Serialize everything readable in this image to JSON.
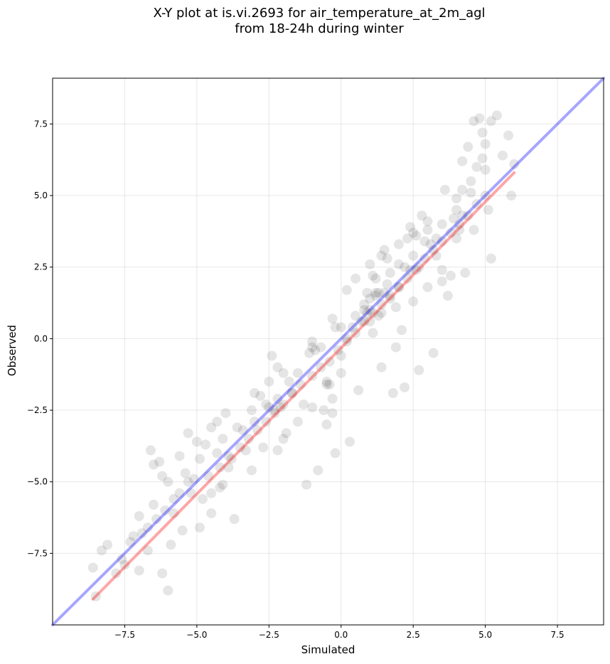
{
  "chart_data": {
    "type": "scatter",
    "title": [
      "X-Y plot at is.vi.2693 for air_temperature_at_2m_agl",
      "from 18-24h during winter"
    ],
    "xlabel": "Simulated",
    "ylabel": "Observed",
    "xlim": [
      -10.0,
      9.1
    ],
    "ylim": [
      -10.0,
      9.1
    ],
    "xticks": [
      -7.5,
      -5.0,
      -2.5,
      0.0,
      2.5,
      5.0,
      7.5
    ],
    "yticks": [
      -7.5,
      -5.0,
      -2.5,
      0.0,
      2.5,
      5.0,
      7.5
    ],
    "xtick_labels": [
      "−7.5",
      "−5.0",
      "−2.5",
      "0.0",
      "2.5",
      "5.0",
      "7.5"
    ],
    "ytick_labels": [
      "−7.5",
      "−5.0",
      "−2.5",
      "0.0",
      "2.5",
      "5.0",
      "7.5"
    ],
    "grid": true,
    "point_color": "#000000",
    "point_alpha": 0.1,
    "points_x": [
      -8.6,
      -8.5,
      -8.3,
      -8.1,
      -7.6,
      -7.3,
      -7.0,
      -6.7,
      -6.2,
      -6.0,
      -5.9,
      -5.5,
      -4.9,
      -4.5,
      -4.2,
      -3.7,
      -6.6,
      -6.5,
      -6.3,
      -6.2,
      -5.4,
      -5.3,
      -5.0,
      -4.9,
      -4.7,
      -4.5,
      -4.5,
      -4.3,
      -4.3,
      -4.1,
      -3.9,
      -3.6,
      -3.4,
      -3.3,
      -3.1,
      -3.0,
      -2.8,
      -2.5,
      -2.4,
      -2.2,
      -2.2,
      -1.8,
      -1.7,
      -1.5,
      -1.1,
      -1.0,
      -0.9,
      -0.7,
      -0.6,
      -0.5,
      -0.5,
      -0.4,
      -0.3,
      -0.3,
      -0.2,
      0.0,
      0.2,
      0.4,
      0.5,
      0.7,
      0.9,
      1.0,
      1.0,
      1.1,
      1.1,
      1.2,
      1.3,
      1.4,
      1.4,
      1.6,
      1.7,
      1.9,
      2.0,
      2.2,
      2.3,
      2.4,
      2.5,
      2.6,
      2.7,
      2.9,
      3.1,
      3.3,
      3.5,
      3.5,
      3.9,
      4.0,
      4.1,
      4.2,
      4.2,
      4.5,
      4.5,
      4.7,
      4.9,
      4.9,
      5.0,
      5.2,
      5.4,
      5.6,
      5.8,
      5.9,
      6.0,
      -7.8,
      -7.5,
      -7.2,
      -6.9,
      -6.7,
      -6.4,
      -6.1,
      -5.8,
      -5.6,
      -5.3,
      -4.6,
      -4.2,
      -3.9,
      -3.5,
      -3.2,
      -2.9,
      -2.6,
      -2.3,
      -2.0,
      -1.7,
      -1.4,
      -1.0,
      -0.7,
      -0.4,
      -0.1,
      0.2,
      0.5,
      0.8,
      1.1,
      1.4,
      1.7,
      2.0,
      2.3,
      2.6,
      2.9,
      3.2,
      3.5,
      3.8,
      4.1,
      4.4,
      4.7,
      5.0,
      0.5,
      1.0,
      1.5,
      2.0,
      2.5,
      3.0,
      0.0,
      -0.5,
      -1.0,
      -1.5,
      -2.0,
      0.2,
      0.8,
      1.2,
      1.6,
      2.4,
      2.8,
      3.6,
      4.2,
      3.5,
      -6.0,
      -7.0,
      -6.5,
      -5.6,
      -5.1,
      -4.1,
      -3.1,
      -2.2,
      -1.2,
      -0.8,
      -0.2,
      0.3,
      1.8,
      2.2,
      2.7,
      3.2,
      3.7,
      4.3,
      4.6,
      5.2,
      5.1,
      4.8,
      4.6,
      4.4,
      -5.8,
      -5.2,
      -4.8,
      -3.8,
      -2.7,
      -1.9,
      -1.3,
      -0.3,
      0.6,
      1.4,
      1.9,
      2.1,
      2.5,
      3.0,
      3.3,
      3.8,
      4.0,
      -4.0,
      -3.0,
      -2.0,
      -1.0,
      0.0,
      1.0,
      2.0,
      3.0,
      4.0,
      5.0,
      -2.3,
      -2.5,
      -2.6,
      -2.1,
      0.9,
      1.2,
      1.5,
      1.7,
      1.3,
      0.8
    ],
    "points_y": [
      -8.0,
      -9.0,
      -7.4,
      -7.2,
      -7.7,
      -7.1,
      -8.1,
      -7.4,
      -8.2,
      -8.8,
      -7.2,
      -6.7,
      -6.6,
      -6.1,
      -5.2,
      -6.3,
      -3.9,
      -5.8,
      -4.3,
      -4.8,
      -4.7,
      -3.3,
      -3.6,
      -4.2,
      -3.7,
      -3.1,
      -5.4,
      -2.9,
      -4.0,
      -3.5,
      -4.5,
      -3.1,
      -3.2,
      -3.9,
      -2.5,
      -2.9,
      -2.0,
      -1.5,
      -0.6,
      -1.0,
      -2.1,
      -1.5,
      -1.9,
      -1.2,
      -0.5,
      -0.1,
      -0.4,
      -0.3,
      -2.5,
      -3.0,
      -1.5,
      -1.6,
      0.7,
      -2.1,
      0.4,
      -0.6,
      0.0,
      0.4,
      0.8,
      0.6,
      0.9,
      1.4,
      0.6,
      0.2,
      2.2,
      1.6,
      0.8,
      0.9,
      2.9,
      1.9,
      2.3,
      1.1,
      1.8,
      2.5,
      3.5,
      2.4,
      2.9,
      3.6,
      2.5,
      3.4,
      3.3,
      3.5,
      4.0,
      2.4,
      4.2,
      4.5,
      3.8,
      5.2,
      4.3,
      5.1,
      5.5,
      6.0,
      6.3,
      7.2,
      6.8,
      7.6,
      7.8,
      6.4,
      7.1,
      5.0,
      6.1,
      -8.2,
      -7.9,
      -6.9,
      -6.8,
      -6.6,
      -6.3,
      -6.0,
      -5.6,
      -5.4,
      -5.0,
      -4.8,
      -4.5,
      -4.1,
      -3.8,
      -3.5,
      -3.2,
      -2.9,
      -2.6,
      -2.3,
      -1.9,
      -1.6,
      -1.3,
      -1.0,
      -0.8,
      -0.4,
      -0.1,
      0.2,
      0.6,
      0.9,
      1.2,
      1.5,
      1.8,
      2.1,
      2.4,
      2.8,
      3.1,
      3.4,
      3.7,
      4.0,
      4.3,
      4.7,
      5.0,
      2.1,
      2.6,
      3.1,
      3.3,
      3.7,
      4.1,
      -1.2,
      -1.6,
      -2.4,
      -2.9,
      -3.5,
      1.7,
      1.2,
      2.1,
      2.8,
      3.9,
      4.3,
      5.2,
      6.2,
      2.0,
      -5.0,
      -6.2,
      -4.4,
      -4.1,
      -4.9,
      -5.1,
      -4.6,
      -3.9,
      -5.1,
      -4.6,
      -4.0,
      -3.6,
      -1.9,
      -1.7,
      -1.1,
      -0.5,
      1.5,
      2.3,
      3.8,
      2.8,
      4.5,
      7.7,
      7.6,
      6.7,
      -6.1,
      -5.4,
      -5.6,
      -4.2,
      -3.8,
      -3.3,
      -2.3,
      -2.6,
      -1.8,
      -1.0,
      -0.3,
      0.3,
      1.3,
      1.8,
      2.9,
      2.2,
      3.5,
      -2.6,
      -1.9,
      -1.2,
      -0.3,
      0.4,
      1.0,
      2.6,
      3.8,
      4.9,
      5.9,
      -2.5,
      -2.4,
      -2.3,
      -2.4,
      1.6,
      1.5,
      1.6,
      1.4,
      1.6,
      1.0
    ],
    "reference_lines": [
      {
        "color": "#0000ff",
        "alpha": 0.35,
        "x": [
          -10.0,
          9.1
        ],
        "y": [
          -10.0,
          9.1
        ]
      },
      {
        "color": "#ff0000",
        "alpha": 0.35,
        "x": [
          -8.6,
          6.0
        ],
        "y": [
          -9.1,
          5.8
        ]
      }
    ]
  }
}
